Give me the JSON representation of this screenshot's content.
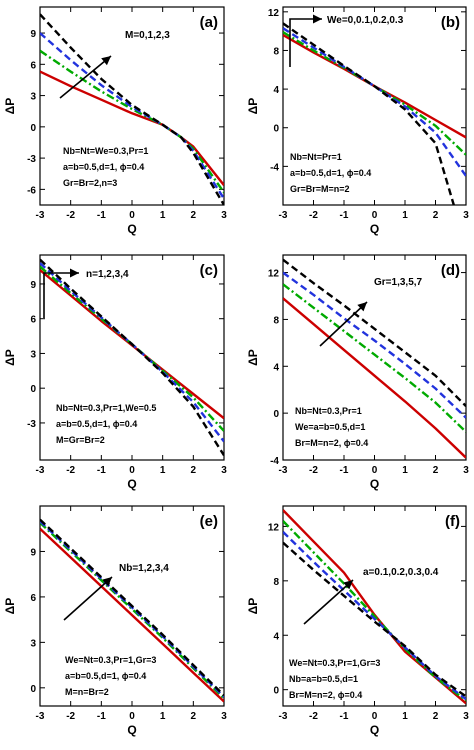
{
  "chart_data": [
    {
      "type": "line",
      "panel_label": "(a)",
      "xlabel": "Q",
      "ylabel": "ΔP",
      "xlim": [
        -3,
        3
      ],
      "ylim": [
        -7.5,
        11.5
      ],
      "xticks": [
        -3,
        -2,
        -1,
        0,
        1,
        2,
        3
      ],
      "yticks": [
        -6,
        -3,
        0,
        3,
        6,
        9
      ],
      "arrow_label": "M=0,1,2,3",
      "params": [
        "Nb=Nt=We=0.3,Pr=1",
        "a=b=0.5,d=1, ϕ=0.4",
        "Gr=Br=2,n=3"
      ],
      "series": [
        {
          "color": "#cc0000",
          "style": "solid",
          "x": [
            -3,
            -2,
            -1,
            0,
            1,
            1.6,
            2,
            3
          ],
          "y": [
            5.3,
            3.9,
            2.6,
            1.3,
            0.2,
            -1.0,
            -1.9,
            -5.6
          ]
        },
        {
          "color": "#00aa00",
          "style": "dashdot",
          "x": [
            -3,
            -2,
            -1,
            0,
            1,
            1.6,
            2,
            3
          ],
          "y": [
            7.3,
            5.3,
            3.4,
            1.7,
            0.2,
            -1.0,
            -2.1,
            -6.3
          ]
        },
        {
          "color": "#2233dd",
          "style": "dash",
          "x": [
            -3,
            -2,
            -1,
            0,
            1,
            1.6,
            2,
            3
          ],
          "y": [
            9.0,
            6.4,
            4.0,
            1.9,
            0.2,
            -1.0,
            -2.3,
            -6.9
          ]
        },
        {
          "color": "#000000",
          "style": "dash",
          "x": [
            -3,
            -2,
            -1,
            0,
            1,
            1.6,
            2,
            3
          ],
          "y": [
            10.8,
            7.6,
            4.6,
            2.1,
            0.2,
            -1.0,
            -2.5,
            -7.5
          ]
        }
      ]
    },
    {
      "type": "line",
      "panel_label": "(b)",
      "xlabel": "Q",
      "ylabel": "ΔP",
      "xlim": [
        -3,
        3
      ],
      "ylim": [
        -8,
        12.5
      ],
      "xticks": [
        -3,
        -2,
        -1,
        0,
        1,
        2,
        3
      ],
      "yticks": [
        -4,
        0,
        4,
        8,
        12
      ],
      "arrow_label": "We=0,0.1,0.2,0.3",
      "params": [
        "Nb=Nt=Pr=1",
        "a=b=0.5,d=1, ϕ=0.4",
        "Gr=Br=M=n=2"
      ],
      "series": [
        {
          "color": "#cc0000",
          "style": "solid",
          "x": [
            -3,
            -2,
            -1,
            0,
            1,
            2,
            3
          ],
          "y": [
            9.6,
            7.8,
            6.1,
            4.3,
            2.6,
            0.8,
            -1.0
          ]
        },
        {
          "color": "#00aa00",
          "style": "dashdot",
          "x": [
            -3,
            -2,
            -1,
            0,
            1,
            2,
            3
          ],
          "y": [
            9.9,
            8.0,
            6.2,
            4.3,
            2.4,
            0.2,
            -2.8
          ]
        },
        {
          "color": "#2233dd",
          "style": "dash",
          "x": [
            -3,
            -2,
            -1,
            0,
            1,
            2,
            3
          ],
          "y": [
            10.3,
            8.3,
            6.3,
            4.3,
            2.2,
            -0.5,
            -5.0
          ]
        },
        {
          "color": "#000000",
          "style": "dash",
          "x": [
            -3,
            -2,
            -1,
            0,
            1,
            2,
            2.6
          ],
          "y": [
            10.8,
            8.6,
            6.4,
            4.3,
            1.9,
            -1.6,
            -8.0
          ]
        }
      ]
    },
    {
      "type": "line",
      "panel_label": "(c)",
      "xlabel": "Q",
      "ylabel": "ΔP",
      "xlim": [
        -3,
        3
      ],
      "ylim": [
        -6.2,
        11.5
      ],
      "xticks": [
        -3,
        -2,
        -1,
        0,
        1,
        2,
        3
      ],
      "yticks": [
        -3,
        0,
        3,
        6,
        9
      ],
      "arrow_label": "n=1,2,3,4",
      "params": [
        "Nb=Nt=0.3,Pr=1,We=0.5",
        "a=b=0.5,d=1, ϕ=0.4",
        "M=Gr=Br=2"
      ],
      "series": [
        {
          "color": "#cc0000",
          "style": "solid",
          "x": [
            -3,
            -2,
            -1,
            0,
            1,
            2,
            3
          ],
          "y": [
            10.2,
            8.0,
            5.8,
            3.7,
            1.6,
            -0.5,
            -2.6
          ]
        },
        {
          "color": "#00aa00",
          "style": "dashdot",
          "x": [
            -3,
            -2,
            -1,
            0,
            1,
            2,
            3
          ],
          "y": [
            10.5,
            8.2,
            6.0,
            3.8,
            1.5,
            -0.8,
            -3.7
          ]
        },
        {
          "color": "#2233dd",
          "style": "dash",
          "x": [
            -3,
            -2,
            -1,
            0,
            1,
            2,
            3
          ],
          "y": [
            10.8,
            8.4,
            6.1,
            3.8,
            1.4,
            -1.2,
            -4.6
          ]
        },
        {
          "color": "#000000",
          "style": "dash",
          "x": [
            -3,
            -2,
            -1,
            0,
            1,
            2,
            3
          ],
          "y": [
            11.1,
            8.6,
            6.2,
            3.8,
            1.3,
            -1.6,
            -5.8
          ]
        }
      ]
    },
    {
      "type": "line",
      "panel_label": "(d)",
      "xlabel": "Q",
      "ylabel": "ΔP",
      "xlim": [
        -3,
        3
      ],
      "ylim": [
        -4,
        13.5
      ],
      "xticks": [
        -3,
        -2,
        -1,
        0,
        1,
        2,
        3
      ],
      "yticks": [
        -4,
        0,
        4,
        8,
        12
      ],
      "arrow_label": "Gr=1,3,5,7",
      "params": [
        "Nb=Nt=0.3,Pr=1",
        "We=a=b=0.5,d=1",
        "Br=M=n=2, ϕ=0.4"
      ],
      "series": [
        {
          "color": "#cc0000",
          "style": "solid",
          "x": [
            -3,
            -2,
            -1,
            0,
            1,
            2,
            3
          ],
          "y": [
            9.8,
            7.6,
            5.4,
            3.2,
            1.0,
            -1.3,
            -3.8
          ]
        },
        {
          "color": "#00aa00",
          "style": "dashdot",
          "x": [
            -3,
            -2,
            -1,
            0,
            1,
            2,
            3
          ],
          "y": [
            11.0,
            9.0,
            7.0,
            5.0,
            3.0,
            0.9,
            -1.6
          ]
        },
        {
          "color": "#2233dd",
          "style": "dash",
          "x": [
            -3,
            -2,
            -1,
            0,
            1,
            2,
            3
          ],
          "y": [
            12.0,
            10.1,
            8.1,
            6.2,
            4.2,
            2.1,
            -0.4
          ]
        },
        {
          "color": "#000000",
          "style": "dash",
          "x": [
            -3,
            -2,
            -1,
            0,
            1,
            2,
            3
          ],
          "y": [
            13.1,
            11.1,
            9.2,
            7.2,
            5.2,
            3.2,
            0.6
          ]
        }
      ]
    },
    {
      "type": "line",
      "panel_label": "(e)",
      "xlabel": "Q",
      "ylabel": "ΔP",
      "xlim": [
        -3,
        3
      ],
      "ylim": [
        -1.2,
        12
      ],
      "xticks": [
        -3,
        -2,
        -1,
        0,
        1,
        2,
        3
      ],
      "yticks": [
        0,
        3,
        6,
        9
      ],
      "arrow_label": "Nb=1,2,3,4",
      "params": [
        "We=Nt=0.3,Pr=1,Gr=3",
        "a=b=0.5,d=1, ϕ=0.4",
        "M=n=Br=2"
      ],
      "series": [
        {
          "color": "#cc0000",
          "style": "solid",
          "x": [
            -3,
            -2,
            -1,
            0,
            1,
            2,
            3
          ],
          "y": [
            10.5,
            8.6,
            6.7,
            4.8,
            2.9,
            1.0,
            -0.9
          ]
        },
        {
          "color": "#00aa00",
          "style": "dashdot",
          "x": [
            -3,
            -2,
            -1,
            0,
            1,
            2,
            3
          ],
          "y": [
            10.9,
            9.0,
            7.1,
            5.2,
            3.3,
            1.3,
            -0.7
          ]
        },
        {
          "color": "#2233dd",
          "style": "dash",
          "x": [
            -3,
            -2,
            -1,
            0,
            1,
            2,
            3
          ],
          "y": [
            11.0,
            9.1,
            7.2,
            5.3,
            3.4,
            1.4,
            -0.6
          ]
        },
        {
          "color": "#000000",
          "style": "dash",
          "x": [
            -3,
            -2,
            -1,
            0,
            1,
            2,
            3
          ],
          "y": [
            11.1,
            9.2,
            7.3,
            5.4,
            3.5,
            1.5,
            -0.5
          ]
        }
      ]
    },
    {
      "type": "line",
      "panel_label": "(f)",
      "xlabel": "Q",
      "ylabel": "ΔP",
      "xlim": [
        -3,
        3
      ],
      "ylim": [
        -1.2,
        13.5
      ],
      "xticks": [
        -3,
        -2,
        -1,
        0,
        1,
        2,
        3
      ],
      "yticks": [
        0,
        4,
        8,
        12
      ],
      "arrow_label": "a=0.1,0.2,0.3,0.4",
      "params": [
        "We=Nt=0.3,Pr=1,Gr=3",
        "Nb=a=b=0.5,d=1",
        "Br=M=n=2, ϕ=0.4"
      ],
      "series": [
        {
          "color": "#cc0000",
          "style": "solid",
          "x": [
            -3,
            -2,
            -1,
            0,
            1,
            2,
            3
          ],
          "y": [
            13.2,
            10.9,
            8.6,
            5.5,
            2.8,
            0.9,
            -1.0
          ]
        },
        {
          "color": "#00aa00",
          "style": "dashdot",
          "x": [
            -3,
            -2,
            -1,
            0,
            1,
            2,
            3
          ],
          "y": [
            12.4,
            10.1,
            7.8,
            5.4,
            3.0,
            0.9,
            -0.8
          ]
        },
        {
          "color": "#2233dd",
          "style": "dash",
          "x": [
            -3,
            -2,
            -1,
            0,
            1,
            2,
            3
          ],
          "y": [
            11.6,
            9.4,
            7.3,
            5.2,
            3.1,
            1.0,
            -0.7
          ]
        },
        {
          "color": "#000000",
          "style": "dash",
          "x": [
            -3,
            -2,
            -1,
            0,
            1,
            2,
            3
          ],
          "y": [
            10.8,
            8.8,
            6.9,
            5.0,
            3.2,
            1.1,
            -0.5
          ]
        }
      ]
    }
  ]
}
